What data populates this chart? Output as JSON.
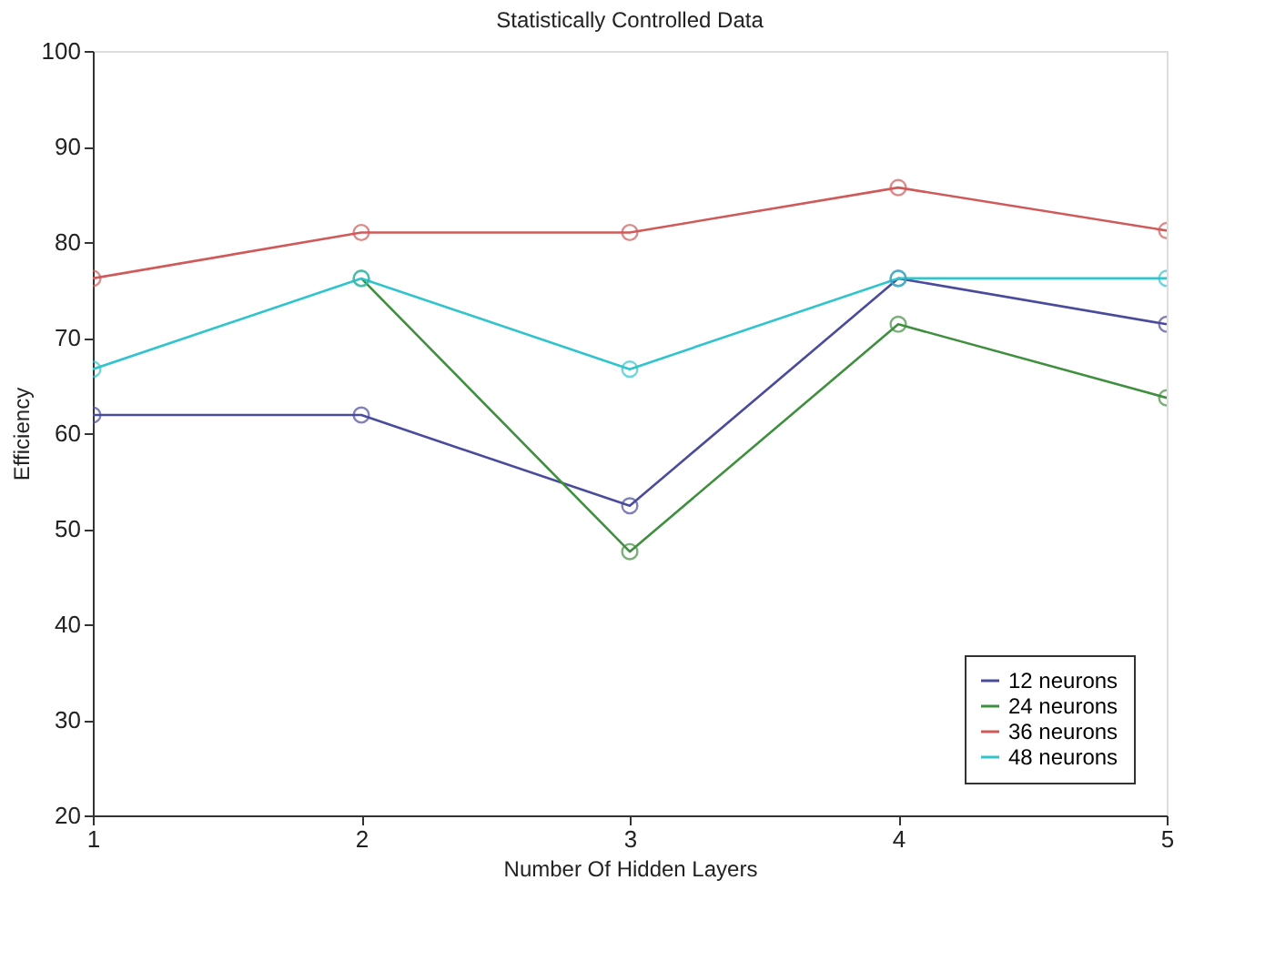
{
  "chart_data": {
    "type": "line",
    "title": "Statistically Controlled Data",
    "xlabel": "Number Of Hidden Layers",
    "ylabel": "Efficiency",
    "x": [
      1,
      2,
      3,
      4,
      5
    ],
    "series": [
      {
        "name": "12 neurons",
        "color": "#4b4b9e",
        "values": [
          61.9,
          61.9,
          52.4,
          76.2,
          71.4
        ]
      },
      {
        "name": "24 neurons",
        "color": "#3f8f3f",
        "values": [
          null,
          76.2,
          47.6,
          71.4,
          63.7
        ]
      },
      {
        "name": "36 neurons",
        "color": "#d05a5a",
        "values": [
          76.2,
          81.0,
          81.0,
          85.7,
          81.2
        ]
      },
      {
        "name": "48 neurons",
        "color": "#30c4cc",
        "values": [
          66.7,
          76.2,
          66.7,
          76.2,
          76.2
        ]
      }
    ],
    "xlim": [
      1,
      5
    ],
    "xticks": [
      1,
      2,
      3,
      4,
      5
    ],
    "ylim": [
      20,
      100
    ],
    "yticks": [
      20,
      30,
      40,
      50,
      60,
      70,
      80,
      90,
      100
    ],
    "grid": false,
    "legend": "bottom right",
    "marker": "circle",
    "line_style": "solid"
  }
}
